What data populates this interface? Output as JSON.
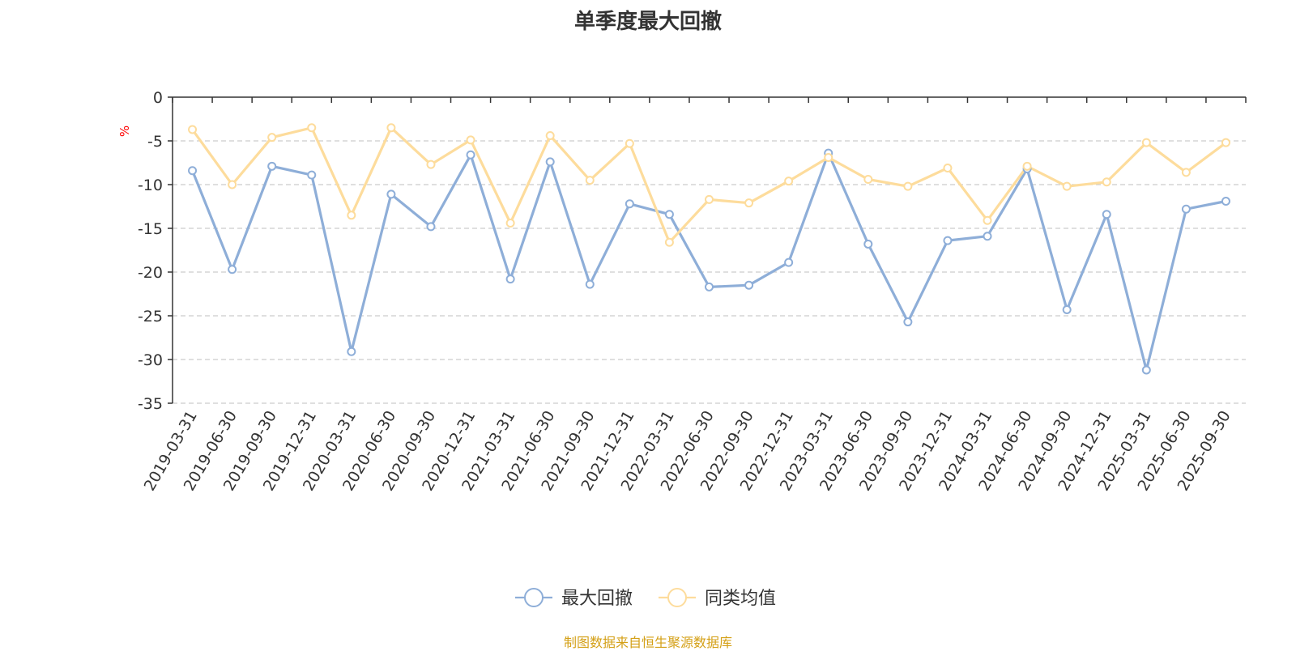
{
  "chart_data": {
    "type": "line",
    "title": "单季度最大回撤",
    "ylabel": "%",
    "ylim": [
      -35,
      0
    ],
    "yticks": [
      0,
      -5,
      -10,
      -15,
      -20,
      -25,
      -30,
      -35
    ],
    "grid": true,
    "legend_position": "bottom-center",
    "categories": [
      "2019-03-31",
      "2019-06-30",
      "2019-09-30",
      "2019-12-31",
      "2020-03-31",
      "2020-06-30",
      "2020-09-30",
      "2020-12-31",
      "2021-03-31",
      "2021-06-30",
      "2021-09-30",
      "2021-12-31",
      "2022-03-31",
      "2022-06-30",
      "2022-09-30",
      "2022-12-31",
      "2023-03-31",
      "2023-06-30",
      "2023-09-30",
      "2023-12-31",
      "2024-03-31",
      "2024-06-30",
      "2024-09-30",
      "2024-12-31",
      "2025-03-31",
      "2025-06-30",
      "2025-09-30"
    ],
    "series": [
      {
        "name": "最大回撤",
        "color": "#8eaed8",
        "values": [
          -8.4,
          -19.7,
          -7.9,
          -8.9,
          -29.1,
          -11.1,
          -14.8,
          -6.6,
          -20.8,
          -7.4,
          -21.4,
          -12.2,
          -13.4,
          -21.7,
          -21.5,
          -18.9,
          -6.4,
          -16.8,
          -25.7,
          -16.4,
          -15.9,
          -8.2,
          -24.3,
          -13.4,
          -31.2,
          -12.8,
          -11.9
        ]
      },
      {
        "name": "同类均值",
        "color": "#fddc9c",
        "values": [
          -3.7,
          -10.0,
          -4.6,
          -3.5,
          -13.5,
          -3.5,
          -7.7,
          -4.9,
          -14.4,
          -4.4,
          -9.5,
          -5.3,
          -16.6,
          -11.7,
          -12.1,
          -9.6,
          -6.9,
          -9.4,
          -10.2,
          -8.1,
          -14.1,
          -7.9,
          -10.2,
          -9.7,
          -5.2,
          -8.6,
          -5.2
        ]
      }
    ]
  },
  "source_note": "制图数据来自恒生聚源数据库",
  "colors": {
    "axis": "#333333",
    "grid": "#cccccc",
    "unit_label": "#ff0000",
    "source_note": "#d4a017"
  }
}
